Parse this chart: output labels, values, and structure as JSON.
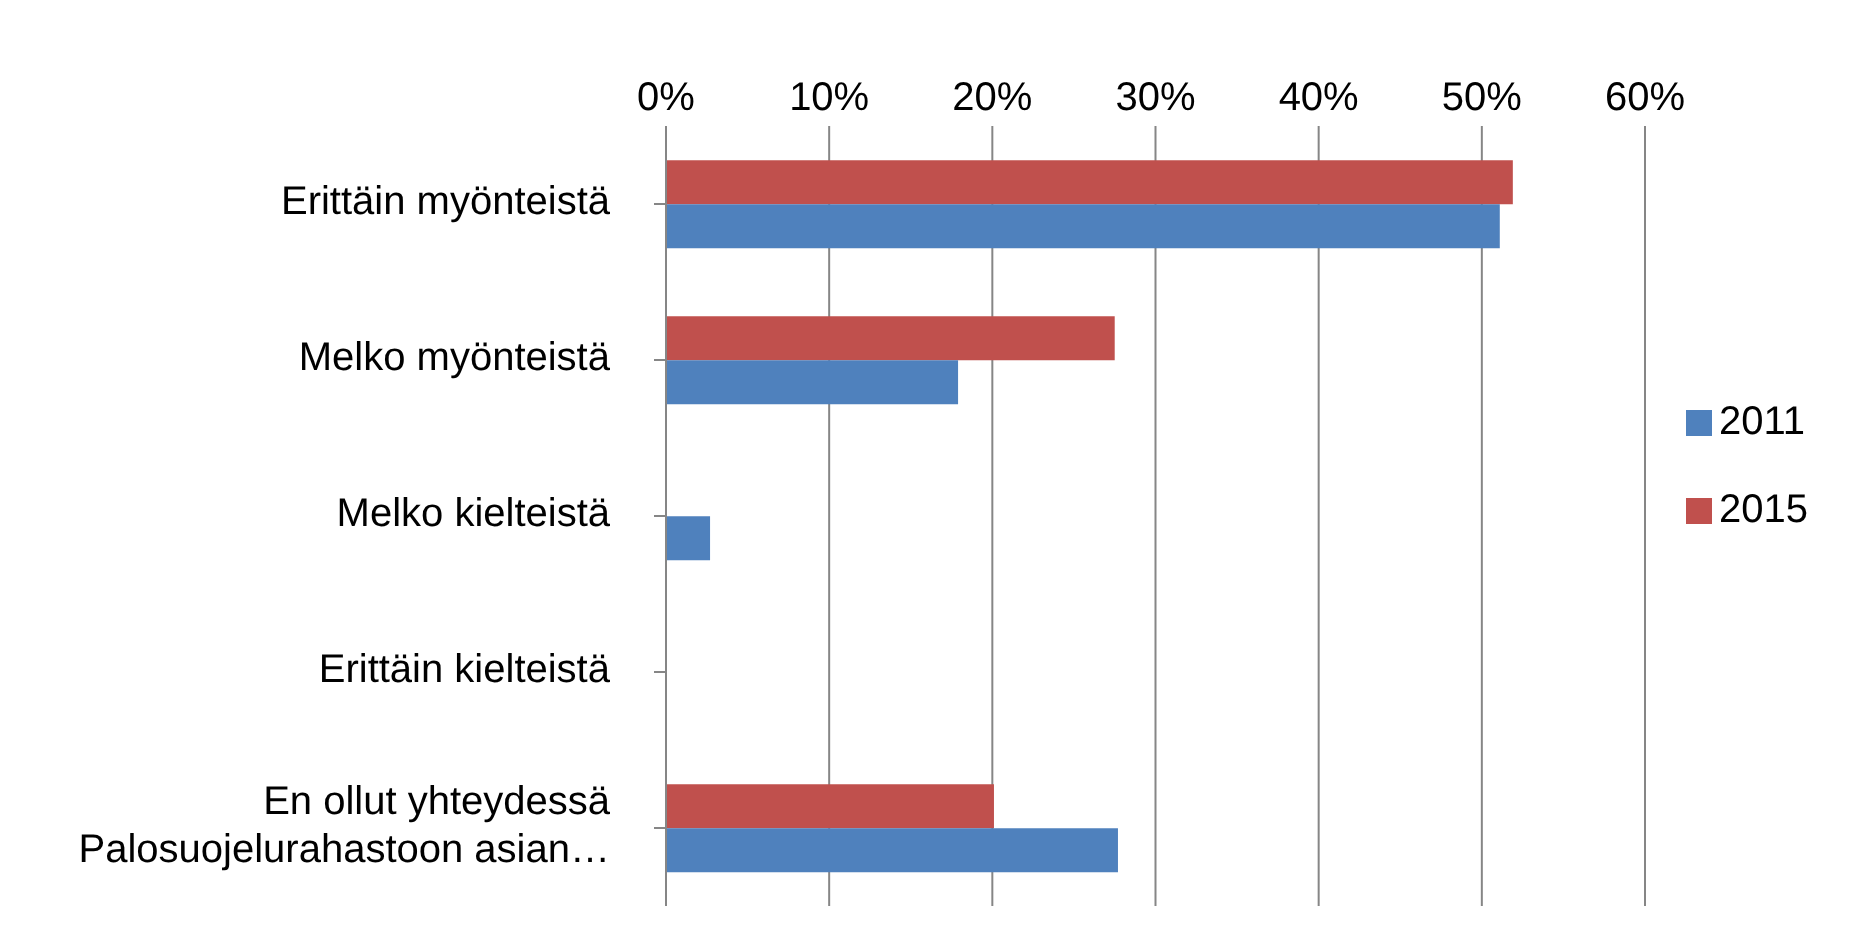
{
  "chart_data": {
    "type": "bar",
    "orientation": "horizontal",
    "categories": [
      "Erittäin myönteistä",
      "Melko myönteistä",
      "Melko kielteistä",
      "Erittäin kielteistä",
      "En ollut yhteydessä Palosuojelurahastoon asian…"
    ],
    "series": [
      {
        "name": "2015",
        "color": "#c0504d",
        "values": [
          51.9,
          27.5,
          0,
          0,
          20.1
        ]
      },
      {
        "name": "2011",
        "color": "#4f81bd",
        "values": [
          51.1,
          17.9,
          2.7,
          0,
          27.7
        ]
      }
    ],
    "xlim": [
      0,
      60
    ],
    "xticks": [
      {
        "value": 0,
        "label": "0%"
      },
      {
        "value": 10,
        "label": "10%"
      },
      {
        "value": 20,
        "label": "20%"
      },
      {
        "value": 30,
        "label": "30%"
      },
      {
        "value": 40,
        "label": "40%"
      },
      {
        "value": 50,
        "label": "50%"
      },
      {
        "value": 60,
        "label": "60%"
      }
    ],
    "grid": "x",
    "legend": "right"
  }
}
